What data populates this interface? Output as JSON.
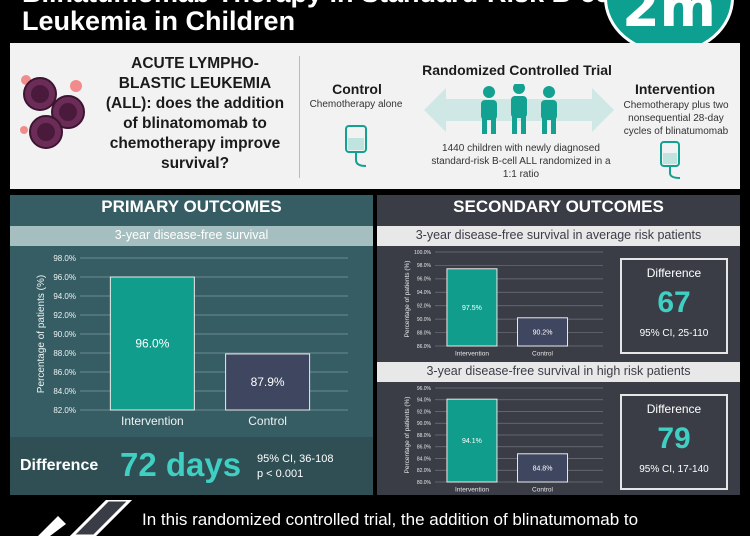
{
  "header": {
    "title_line1": "Blinatumomab Therapy in Standard-Risk B-cell",
    "title_line2": "Leukemia in Children",
    "logo_text": "2m"
  },
  "intro": {
    "question": "ACUTE LYMPHO-BLASTIC LEUKEMIA (ALL): does the addition of blinatomomab to chemotherapy improve survival?",
    "control_title": "Control",
    "control_desc": "Chemotherapy alone",
    "rct_title": "Randomized Controlled Trial",
    "rct_desc": "1440 children with newly diagnosed standard-risk B-cell ALL randomized in a 1:1 ratio",
    "intervention_title": "Intervention",
    "intervention_desc": "Chemotherapy plus two nonsequential 28-day cycles of blinatumomab"
  },
  "primary": {
    "title": "PRIMARY OUTCOMES",
    "subtitle": "3-year disease-free survival",
    "diff_label": "Difference",
    "diff_value": "72 days",
    "diff_ci": "95% CI, 36-108",
    "diff_p": "p < 0.001"
  },
  "secondary": {
    "title": "SECONDARY OUTCOMES",
    "subtitle1": "3-year disease-free survival in average risk patients",
    "subtitle2": "3-year disease-free survival in high risk patients",
    "box1_label": "Difference",
    "box1_value": "67",
    "box1_ci": "95% CI, 25-110",
    "box2_label": "Difference",
    "box2_value": "79",
    "box2_ci": "95% CI, 17-140"
  },
  "conclusion": "In this randomized controlled trial, the addition of blinatumomab to",
  "colors": {
    "intervention": "#109d8b",
    "control": "#3f4660",
    "accent": "#3fd0c3"
  },
  "chart_data": [
    {
      "type": "bar",
      "categories": [
        "Intervention",
        "Control"
      ],
      "values": [
        96.0,
        87.9
      ],
      "labels": [
        "96.0%",
        "87.9%"
      ],
      "ylabel": "Percentage of patients (%)",
      "ylim": [
        82,
        98
      ],
      "yticks": [
        "82.0%",
        "84.0%",
        "86.0%",
        "88.0%",
        "90.0%",
        "92.0%",
        "94.0%",
        "96.0%",
        "98.0%"
      ]
    },
    {
      "type": "bar",
      "categories": [
        "Intervention",
        "Control"
      ],
      "values": [
        97.5,
        90.2
      ],
      "labels": [
        "97.5%",
        "90.2%"
      ],
      "ylabel": "Percentage of patients (%)",
      "ylim": [
        86,
        100
      ],
      "yticks": [
        "86.0%",
        "88.0%",
        "90.0%",
        "92.0%",
        "94.0%",
        "96.0%",
        "98.0%",
        "100.0%"
      ]
    },
    {
      "type": "bar",
      "categories": [
        "Intervention",
        "Control"
      ],
      "values": [
        94.1,
        84.8
      ],
      "labels": [
        "94.1%",
        "84.8%"
      ],
      "ylabel": "Percentage of patients (%)",
      "ylim": [
        80,
        96
      ],
      "yticks": [
        "80.0%",
        "82.0%",
        "84.0%",
        "86.0%",
        "88.0%",
        "90.0%",
        "92.0%",
        "94.0%",
        "96.0%"
      ]
    }
  ]
}
